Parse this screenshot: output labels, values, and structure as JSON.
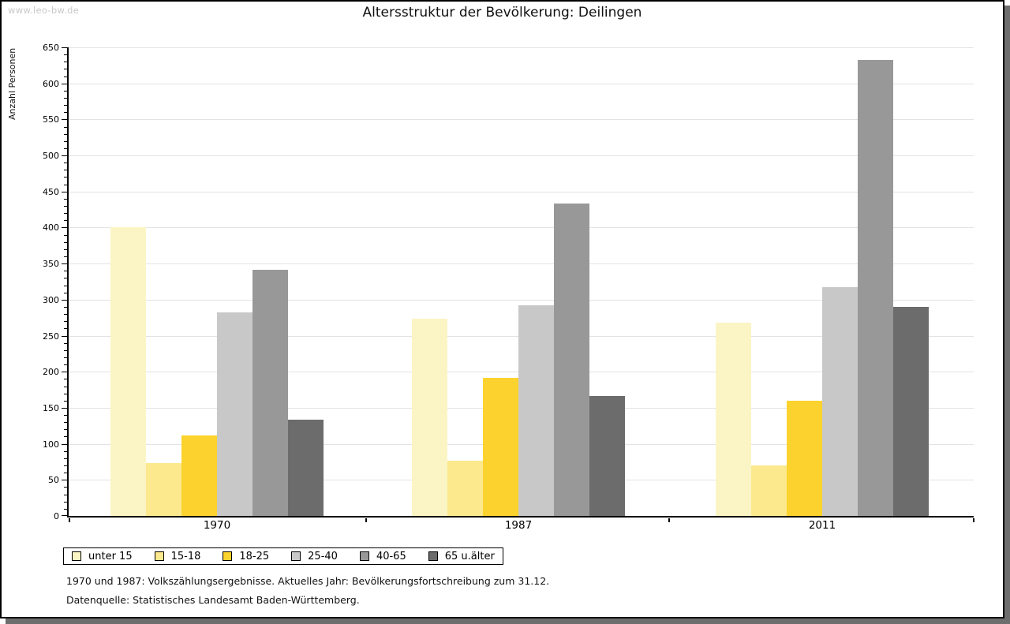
{
  "watermark": "www.leo-bw.de",
  "chart_data": {
    "type": "bar",
    "title": "Altersstruktur der Bevölkerung: Deilingen",
    "ylabel": "Anzahl Personen",
    "xlabel": "",
    "categories": [
      "1970",
      "1987",
      "2011"
    ],
    "series": [
      {
        "name": "unter 15",
        "color": "#FBF5C6",
        "values": [
          400,
          274,
          268
        ]
      },
      {
        "name": "15-18",
        "color": "#FCE98E",
        "values": [
          73,
          77,
          70
        ]
      },
      {
        "name": "18-25",
        "color": "#FCD32E",
        "values": [
          112,
          191,
          160
        ]
      },
      {
        "name": "25-40",
        "color": "#C8C8C8",
        "values": [
          282,
          292,
          317
        ]
      },
      {
        "name": "40-65",
        "color": "#989898",
        "values": [
          341,
          433,
          632
        ]
      },
      {
        "name": "65 u.älter",
        "color": "#6C6C6C",
        "values": [
          133,
          166,
          290
        ]
      }
    ],
    "ylim": [
      0,
      650
    ],
    "ytick_step": 50,
    "yminor_step": 10,
    "grid": true,
    "gridline_color": "#E3E3E3",
    "axis_color": "#000000",
    "legend_position": "bottom"
  },
  "footer": {
    "line1": "1970 und 1987: Volkszählungsergebnisse. Aktuelles Jahr: Bevölkerungsfortschreibung zum 31.12.",
    "line2": "Datenquelle: Statistisches Landesamt Baden-Württemberg."
  }
}
